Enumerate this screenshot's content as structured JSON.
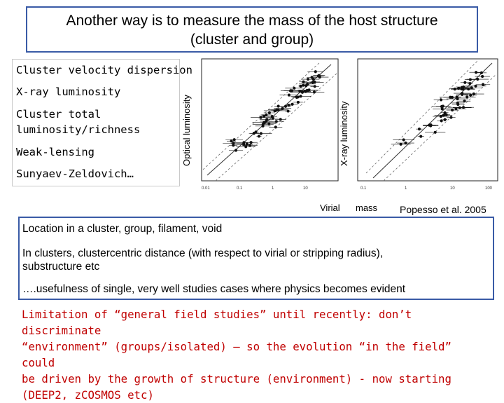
{
  "title": {
    "line1": "Another way is to measure the mass of the host structure",
    "line2": "(cluster and group)"
  },
  "methods": [
    "Cluster velocity dispersion",
    "X-ray luminosity",
    "Cluster total",
    "luminosity/richness",
    "Weak-lensing",
    "Sunyaev-Zeldovich…"
  ],
  "plots": {
    "left_ylabel": "Optical luminosity",
    "right_ylabel": "X-ray luminosity",
    "virial_label": "Virial",
    "mass_label": "mass",
    "credit": "Popesso et al. 2005"
  },
  "info": {
    "line1": "Location in a cluster, group, filament, void",
    "line2": "In clusters, clustercentric distance (with respect to virial or stripping radius),",
    "line3": "substructure etc",
    "line4": "….usefulness of single, very well studies cases where physics becomes evident"
  },
  "bottom": {
    "line1": "Limitation of “general field studies” until recently: don’t discriminate",
    "line2": "“environment” (groups/isolated) – so the evolution “in the field” could",
    "line3": "be driven by the growth of structure (environment) - now starting",
    "line4": "(DEEP2, zCOSMOS etc)"
  },
  "colors": {
    "box_border": "#3a5ba6",
    "bottom_text": "#c00000"
  }
}
